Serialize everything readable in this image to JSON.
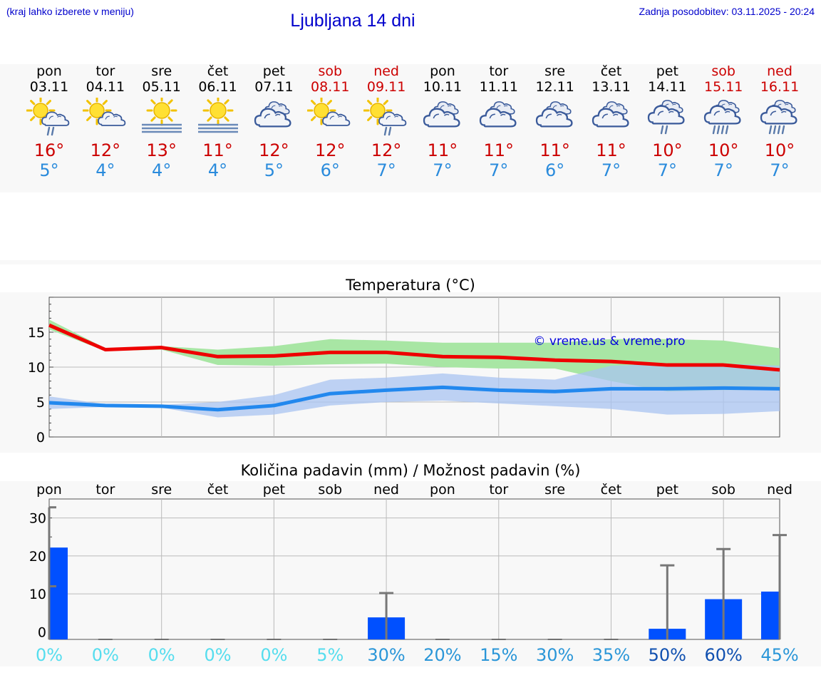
{
  "header": {
    "left_note": "(kraj lahko izberete v meniju)",
    "title": "Ljubljana 14 dni",
    "right_note": "Zadnja posodobitev: 03.11.2025 - 20:24"
  },
  "colors": {
    "max_temp": "#ee0000",
    "min_temp": "#2288ee",
    "max_band": "#a8e6a4",
    "min_band": "#a9c4f2",
    "precip_bar": "#0050ff",
    "weekend": "#cc0000"
  },
  "forecast": [
    {
      "day": "pon",
      "date": "03.11",
      "icon": "sun-cloud-rain-icon",
      "max": "16°",
      "min": "5°",
      "weekend": false
    },
    {
      "day": "tor",
      "date": "04.11",
      "icon": "sun-cloud-icon",
      "max": "12°",
      "min": "4°",
      "weekend": false
    },
    {
      "day": "sre",
      "date": "05.11",
      "icon": "sun-fog-icon",
      "max": "13°",
      "min": "4°",
      "weekend": false
    },
    {
      "day": "čet",
      "date": "06.11",
      "icon": "sun-fog-icon",
      "max": "11°",
      "min": "4°",
      "weekend": false
    },
    {
      "day": "pet",
      "date": "07.11",
      "icon": "cloudy-icon",
      "max": "12°",
      "min": "5°",
      "weekend": false
    },
    {
      "day": "sob",
      "date": "08.11",
      "icon": "sun-cloud-icon",
      "max": "12°",
      "min": "6°",
      "weekend": true
    },
    {
      "day": "ned",
      "date": "09.11",
      "icon": "sun-cloud-rain-icon",
      "max": "12°",
      "min": "7°",
      "weekend": true
    },
    {
      "day": "pon",
      "date": "10.11",
      "icon": "cloudy-icon",
      "max": "11°",
      "min": "7°",
      "weekend": false
    },
    {
      "day": "tor",
      "date": "11.11",
      "icon": "cloudy-icon",
      "max": "11°",
      "min": "7°",
      "weekend": false
    },
    {
      "day": "sre",
      "date": "12.11",
      "icon": "cloudy-icon",
      "max": "11°",
      "min": "6°",
      "weekend": false
    },
    {
      "day": "čet",
      "date": "13.11",
      "icon": "cloudy-icon",
      "max": "11°",
      "min": "7°",
      "weekend": false
    },
    {
      "day": "pet",
      "date": "14.11",
      "icon": "cloud-rain-icon",
      "max": "10°",
      "min": "7°",
      "weekend": false
    },
    {
      "day": "sob",
      "date": "15.11",
      "icon": "cloud-heavy-rain-icon",
      "max": "10°",
      "min": "7°",
      "weekend": true
    },
    {
      "day": "ned",
      "date": "16.11",
      "icon": "cloud-heavy-rain-icon",
      "max": "10°",
      "min": "7°",
      "weekend": true
    }
  ],
  "chart_data": [
    {
      "type": "line",
      "title": "Temperatura (°C)",
      "watermark": "© vreme.us & vreme.pro",
      "ylim": [
        0,
        20
      ],
      "yticks": [
        "0",
        "5",
        "10",
        "15"
      ],
      "grid": true,
      "series": [
        {
          "values": [
            16.0,
            12.5,
            12.8,
            11.5,
            11.6,
            12.1,
            12.1,
            11.5,
            11.4,
            11.0,
            10.8,
            10.3,
            10.3,
            9.6
          ],
          "band_low": [
            15.4,
            12.3,
            12.5,
            10.3,
            10.2,
            10.4,
            10.5,
            10.0,
            9.8,
            9.8,
            8.0,
            6.5,
            6.7,
            6.7
          ],
          "band_high": [
            16.8,
            12.7,
            13.0,
            12.5,
            13.0,
            14.0,
            13.8,
            13.5,
            13.5,
            13.5,
            14.0,
            14.0,
            13.8,
            12.7
          ]
        },
        {
          "values": [
            4.9,
            4.5,
            4.4,
            3.9,
            4.5,
            6.2,
            6.7,
            7.1,
            6.7,
            6.5,
            6.9,
            6.9,
            7.0,
            6.9
          ],
          "band_low": [
            4.0,
            4.3,
            4.2,
            2.8,
            3.2,
            4.5,
            5.0,
            5.2,
            4.8,
            4.4,
            4.0,
            3.2,
            3.3,
            3.7
          ],
          "band_high": [
            5.8,
            4.7,
            4.6,
            5.0,
            6.0,
            8.2,
            8.5,
            9.1,
            8.5,
            8.2,
            10.2,
            10.5,
            10.5,
            10.2
          ]
        }
      ]
    },
    {
      "type": "bar",
      "title": "Količina padavin (mm) / Možnost padavin (%)",
      "categories": [
        "pon",
        "tor",
        "sre",
        "čet",
        "pet",
        "sob",
        "ned",
        "pon",
        "tor",
        "sre",
        "čet",
        "pet",
        "sob",
        "ned"
      ],
      "ylim": [
        -2,
        35
      ],
      "yticks": [
        "0",
        "10",
        "20",
        "30"
      ],
      "values": [
        22.2,
        0,
        0,
        0,
        0,
        0,
        3.8,
        0,
        0,
        0,
        0,
        0.8,
        8.6,
        10.6
      ],
      "error_high": [
        32.8,
        0,
        0,
        0,
        0,
        0,
        10.2,
        0,
        0,
        0,
        0,
        17.5,
        21.8,
        25.5
      ],
      "error_low": [
        12.0,
        0,
        0,
        0,
        0,
        0,
        0,
        0,
        0,
        0,
        0,
        0,
        0,
        0
      ],
      "probability": [
        "0%",
        "0%",
        "0%",
        "0%",
        "0%",
        "5%",
        "30%",
        "20%",
        "15%",
        "30%",
        "35%",
        "50%",
        "60%",
        "45%"
      ],
      "probability_colors": [
        "#55ddee",
        "#55ddee",
        "#55ddee",
        "#55ddee",
        "#55ddee",
        "#55ddee",
        "#2a96d8",
        "#2a96d8",
        "#2a96d8",
        "#2a96d8",
        "#2a96d8",
        "#1050b0",
        "#1050b0",
        "#2a96d8"
      ]
    }
  ]
}
